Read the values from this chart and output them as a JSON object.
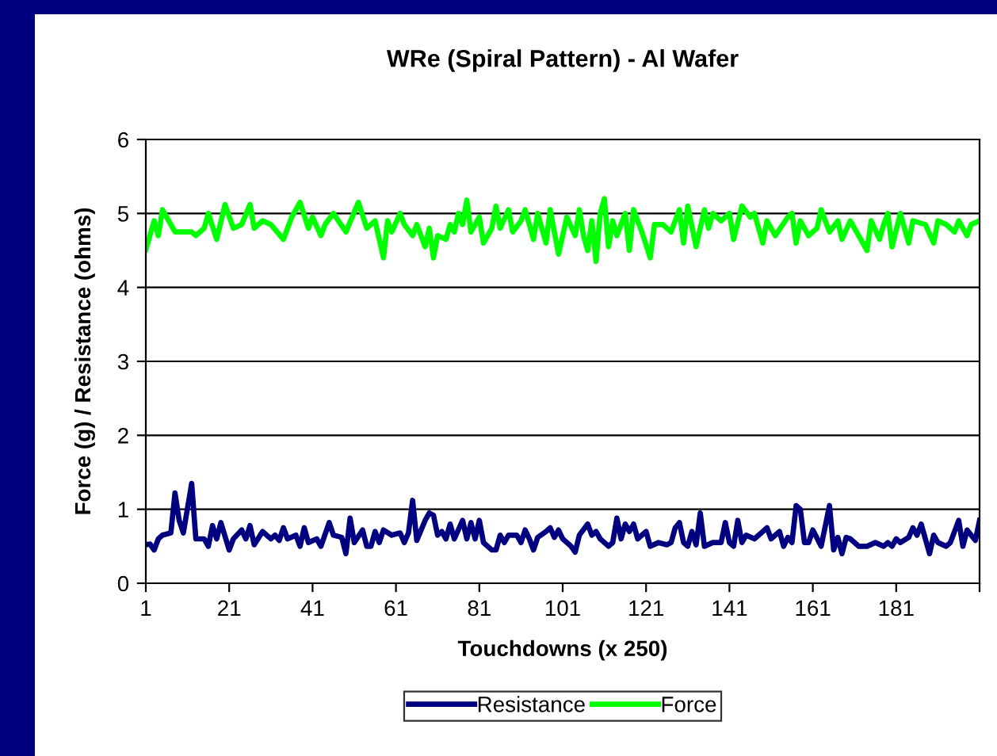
{
  "chart_data": {
    "type": "line",
    "title": "WRe (Spiral Pattern) - Al Wafer",
    "xlabel": "Touchdowns (x 250)",
    "ylabel": "Force (g) / Resistance (ohms)",
    "xlim": [
      1,
      201
    ],
    "xticks": [
      1,
      21,
      41,
      61,
      81,
      101,
      121,
      141,
      161,
      181,
      {
        "value": 201,
        "label": null
      }
    ],
    "ylim": [
      0,
      6
    ],
    "yticks": [
      0,
      1,
      2,
      3,
      4,
      5,
      6
    ],
    "grid": "y",
    "legend": "bottom",
    "marker": "none",
    "line_style": "solid",
    "series": [
      {
        "name": "Resistance",
        "color": "#000080",
        "x": [
          1,
          2,
          3,
          4,
          5,
          7,
          8,
          9,
          10,
          12,
          13,
          15,
          16,
          17,
          18,
          19,
          21,
          22,
          24,
          25,
          26,
          27,
          29,
          31,
          32,
          33,
          34,
          35,
          37,
          38,
          39,
          40,
          42,
          43,
          45,
          46,
          48,
          49,
          50,
          51,
          53,
          54,
          55,
          56,
          57,
          58,
          60,
          62,
          63,
          64,
          65,
          66,
          68,
          69,
          70,
          71,
          72,
          73,
          74,
          75,
          77,
          78,
          79,
          80,
          81,
          82,
          84,
          85,
          86,
          87,
          88,
          90,
          91,
          92,
          93,
          94,
          95,
          97,
          98,
          99,
          100,
          101,
          103,
          104,
          105,
          107,
          108,
          109,
          110,
          112,
          113,
          114,
          115,
          116,
          117,
          118,
          119,
          120,
          121,
          122,
          124,
          126,
          127,
          128,
          129,
          130,
          131,
          132,
          133,
          134,
          135,
          137,
          139,
          140,
          141,
          142,
          143,
          144,
          145,
          147,
          149,
          150,
          151,
          152,
          153,
          154,
          155,
          156,
          157,
          158,
          159,
          160,
          161,
          163,
          165,
          166,
          167,
          168,
          169,
          170,
          172,
          174,
          176,
          178,
          179,
          180,
          181,
          182,
          184,
          185,
          186,
          187,
          188,
          189,
          190,
          191,
          193,
          194,
          196,
          197,
          198,
          199,
          200,
          201
        ],
        "values": [
          0.52,
          0.53,
          0.45,
          0.6,
          0.65,
          0.68,
          1.22,
          0.85,
          0.68,
          1.35,
          0.6,
          0.6,
          0.5,
          0.78,
          0.6,
          0.82,
          0.45,
          0.6,
          0.72,
          0.6,
          0.78,
          0.52,
          0.7,
          0.6,
          0.65,
          0.58,
          0.75,
          0.6,
          0.65,
          0.5,
          0.75,
          0.55,
          0.6,
          0.5,
          0.82,
          0.65,
          0.62,
          0.4,
          0.88,
          0.55,
          0.72,
          0.5,
          0.5,
          0.7,
          0.55,
          0.72,
          0.65,
          0.68,
          0.55,
          0.68,
          1.12,
          0.58,
          0.85,
          0.95,
          0.92,
          0.65,
          0.7,
          0.6,
          0.8,
          0.6,
          0.85,
          0.6,
          0.82,
          0.6,
          0.85,
          0.55,
          0.45,
          0.45,
          0.65,
          0.55,
          0.65,
          0.65,
          0.55,
          0.72,
          0.6,
          0.45,
          0.62,
          0.7,
          0.75,
          0.62,
          0.72,
          0.6,
          0.5,
          0.42,
          0.65,
          0.8,
          0.65,
          0.7,
          0.6,
          0.5,
          0.55,
          0.88,
          0.6,
          0.8,
          0.7,
          0.8,
          0.6,
          0.65,
          0.7,
          0.5,
          0.55,
          0.52,
          0.55,
          0.75,
          0.82,
          0.55,
          0.5,
          0.7,
          0.52,
          0.95,
          0.5,
          0.55,
          0.55,
          0.82,
          0.55,
          0.5,
          0.85,
          0.55,
          0.65,
          0.6,
          0.7,
          0.75,
          0.6,
          0.65,
          0.7,
          0.5,
          0.62,
          0.55,
          1.05,
          1.0,
          0.55,
          0.55,
          0.72,
          0.5,
          1.05,
          0.45,
          0.62,
          0.4,
          0.62,
          0.6,
          0.5,
          0.5,
          0.55,
          0.5,
          0.55,
          0.5,
          0.6,
          0.55,
          0.62,
          0.75,
          0.65,
          0.8,
          0.6,
          0.4,
          0.65,
          0.55,
          0.5,
          0.55,
          0.85,
          0.5,
          0.72,
          0.65,
          0.58,
          0.85
        ]
      },
      {
        "name": "Force",
        "color": "#00ff00",
        "x": [
          1,
          3,
          4,
          5,
          8,
          12,
          13,
          15,
          16,
          18,
          20,
          22,
          24,
          26,
          27,
          29,
          31,
          34,
          36,
          38,
          40,
          41,
          43,
          44,
          46,
          49,
          52,
          54,
          56,
          58,
          59,
          60,
          62,
          63,
          65,
          66,
          67,
          68,
          69,
          70,
          71,
          73,
          74,
          75,
          76,
          77,
          78,
          79,
          81,
          82,
          84,
          85,
          86,
          88,
          89,
          91,
          92,
          94,
          95,
          97,
          98,
          100,
          102,
          104,
          105,
          106,
          107,
          108,
          109,
          110,
          111,
          112,
          113,
          114,
          116,
          117,
          118,
          120,
          122,
          123,
          125,
          127,
          129,
          130,
          131,
          133,
          135,
          136,
          137,
          139,
          141,
          142,
          144,
          146,
          147,
          149,
          150,
          152,
          155,
          156,
          157,
          158,
          160,
          162,
          163,
          165,
          167,
          168,
          170,
          172,
          174,
          175,
          177,
          178,
          179,
          180,
          182,
          184,
          185,
          188,
          190,
          191,
          193,
          195,
          196,
          198,
          199,
          201
        ],
        "values": [
          4.51,
          4.9,
          4.7,
          5.05,
          4.75,
          4.75,
          4.7,
          4.8,
          5.0,
          4.65,
          5.12,
          4.8,
          4.85,
          5.12,
          4.8,
          4.9,
          4.85,
          4.65,
          4.95,
          5.15,
          4.8,
          4.95,
          4.7,
          4.85,
          5.0,
          4.75,
          5.15,
          4.8,
          4.9,
          4.4,
          4.9,
          4.75,
          5.0,
          4.85,
          4.7,
          4.85,
          4.7,
          4.55,
          4.8,
          4.4,
          4.7,
          4.65,
          4.85,
          4.75,
          5.0,
          4.85,
          5.18,
          4.75,
          4.95,
          4.6,
          4.8,
          5.1,
          4.8,
          5.05,
          4.75,
          4.9,
          5.05,
          4.65,
          5.0,
          4.6,
          5.05,
          4.45,
          4.95,
          4.7,
          5.05,
          4.7,
          4.5,
          4.9,
          4.35,
          5.0,
          5.2,
          4.55,
          4.9,
          4.7,
          5.0,
          4.5,
          5.05,
          4.75,
          4.4,
          4.85,
          4.85,
          4.75,
          5.05,
          4.6,
          5.1,
          4.55,
          5.05,
          4.8,
          5.0,
          4.9,
          5.0,
          4.65,
          5.1,
          4.95,
          5.0,
          4.6,
          4.9,
          4.7,
          4.95,
          5.0,
          4.6,
          4.9,
          4.7,
          4.8,
          5.05,
          4.75,
          4.9,
          4.65,
          4.9,
          4.7,
          4.5,
          4.9,
          4.65,
          4.85,
          5.0,
          4.55,
          5.0,
          4.6,
          4.9,
          4.85,
          4.6,
          4.9,
          4.85,
          4.75,
          4.9,
          4.7,
          4.85,
          4.9
        ]
      }
    ]
  }
}
